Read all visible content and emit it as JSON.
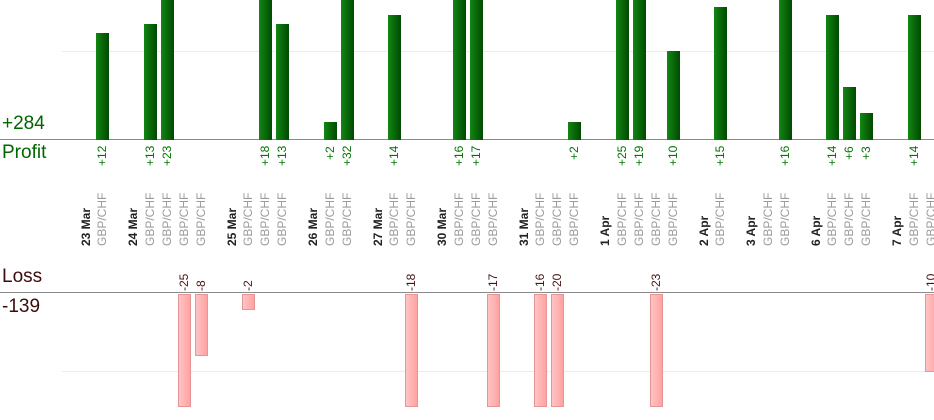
{
  "chart_data": {
    "type": "bar",
    "description": "Daily trade profit/loss bar chart, one bar per trade grouped by date",
    "profit_section": {
      "total_label": "+284",
      "axis_label": "Profit",
      "total": 284,
      "gridline_value": 10,
      "visible_value_range": [
        0,
        16
      ]
    },
    "loss_section": {
      "axis_label": "Loss",
      "total_label": "-139",
      "total": -139,
      "gridline_value": -10,
      "visible_value_range": [
        0,
        -14.5
      ]
    },
    "groups": [
      {
        "date": "23 Mar",
        "trades": [
          {
            "symbol": "GBP/CHF",
            "value": 12,
            "label": "+12"
          }
        ]
      },
      {
        "date": "24 Mar",
        "trades": [
          {
            "symbol": "GBP/CHF",
            "value": 13,
            "label": "+13"
          },
          {
            "symbol": "GBP/CHF",
            "value": 23,
            "label": "+23"
          },
          {
            "symbol": "GBP/CHF",
            "value": -25,
            "label": "-25"
          },
          {
            "symbol": "GBP/CHF",
            "value": -8,
            "label": "-8"
          }
        ]
      },
      {
        "date": "25 Mar",
        "trades": [
          {
            "symbol": "GBP/CHF",
            "value": -2,
            "label": "-2"
          },
          {
            "symbol": "GBP/CHF",
            "value": 18,
            "label": "+18"
          },
          {
            "symbol": "GBP/CHF",
            "value": 13,
            "label": "+13"
          }
        ]
      },
      {
        "date": "26 Mar",
        "trades": [
          {
            "symbol": "GBP/CHF",
            "value": 2,
            "label": "+2"
          },
          {
            "symbol": "GBP/CHF",
            "value": 32,
            "label": "+32"
          }
        ]
      },
      {
        "date": "27 Mar",
        "trades": [
          {
            "symbol": "GBP/CHF",
            "value": 14,
            "label": "+14"
          },
          {
            "symbol": "GBP/CHF",
            "value": -18,
            "label": "-18"
          }
        ]
      },
      {
        "date": "30 Mar",
        "trades": [
          {
            "symbol": "GBP/CHF",
            "value": 16,
            "label": "+16"
          },
          {
            "symbol": "GBP/CHF",
            "value": 17,
            "label": "+17"
          },
          {
            "symbol": "GBP/CHF",
            "value": -17,
            "label": "-17"
          }
        ]
      },
      {
        "date": "31 Mar",
        "trades": [
          {
            "symbol": "GBP/CHF",
            "value": -16,
            "label": "-16"
          },
          {
            "symbol": "GBP/CHF",
            "value": -20,
            "label": "-20"
          },
          {
            "symbol": "GBP/CHF",
            "value": 2,
            "label": "+2"
          }
        ]
      },
      {
        "date": "1 Apr",
        "trades": [
          {
            "symbol": "GBP/CHF",
            "value": 25,
            "label": "+25"
          },
          {
            "symbol": "GBP/CHF",
            "value": 19,
            "label": "+19"
          },
          {
            "symbol": "GBP/CHF",
            "value": -23,
            "label": "-23"
          },
          {
            "symbol": "GBP/CHF",
            "value": 10,
            "label": "+10"
          }
        ]
      },
      {
        "date": "2 Apr",
        "trades": [
          {
            "symbol": "GBP/CHF",
            "value": 15,
            "label": "+15"
          }
        ]
      },
      {
        "date": "3 Apr",
        "trades": [
          {
            "symbol": "GBP/CHF",
            "value": 0,
            "label": ""
          },
          {
            "symbol": "GBP/CHF",
            "value": 16,
            "label": "+16"
          }
        ]
      },
      {
        "date": "6 Apr",
        "trades": [
          {
            "symbol": "GBP/CHF",
            "value": 14,
            "label": "+14"
          },
          {
            "symbol": "GBP/CHF",
            "value": 6,
            "label": "+6"
          },
          {
            "symbol": "GBP/CHF",
            "value": 3,
            "label": "+3"
          }
        ]
      },
      {
        "date": "7 Apr",
        "trades": [
          {
            "symbol": "GBP/CHF",
            "value": 14,
            "label": "+14"
          },
          {
            "symbol": "GBP/CHF",
            "value": -10,
            "label": "-10"
          }
        ]
      }
    ],
    "layout_hints": {
      "profit_bars_clipped_at_top": true,
      "loss_bars_clipped_at_bottom": true,
      "x_labels_rotated_vertical": true,
      "grid": "single light gridline per section at +/-10"
    },
    "colors": {
      "profit_bar_light": "#138613",
      "profit_bar_dark": "#004a00",
      "profit_value_text": "#007500",
      "profit_total_text": "#006600",
      "loss_bar_light": "#ffc4c4",
      "loss_bar_dark": "#ffa2a2",
      "loss_bar_border": "#e59595",
      "loss_value_text": "#4a1414",
      "loss_total_text": "#3c0c0c",
      "date_text": "#222222",
      "symbol_text": "#9b9b9b",
      "axis_line": "#8a8a8a",
      "gridline": "#ececec"
    }
  }
}
